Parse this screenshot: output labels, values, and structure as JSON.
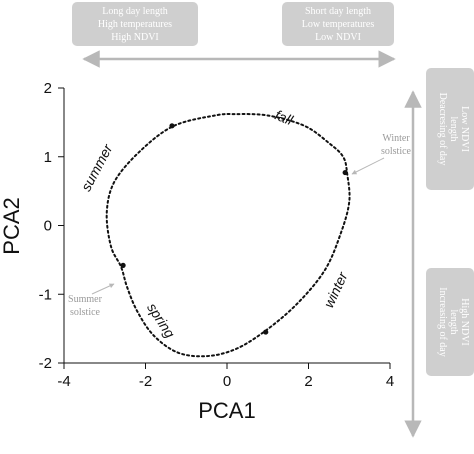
{
  "colors": {
    "box_fill": "#cfcfcf",
    "arrow": "#b8b8b8",
    "annotation_text": "#9a9a9a",
    "curve": "#111111"
  },
  "top_boxes": {
    "left": [
      "Long day length",
      "High temperatures",
      "High NDVI"
    ],
    "right": [
      "Short day length",
      "Low temperatures",
      "Low NDVI"
    ]
  },
  "side_boxes": {
    "upper": [
      "Deacresing of day",
      "length",
      "Low NDVI"
    ],
    "lower": [
      "Increasing of day",
      "length",
      "High NDVI"
    ]
  },
  "chart_data": {
    "type": "line",
    "xlabel": "PCA1",
    "ylabel": "PCA2",
    "xlim": [
      -4,
      4
    ],
    "ylim": [
      -2,
      2
    ],
    "xticks": [
      -4,
      -2,
      0,
      2,
      4
    ],
    "yticks": [
      -2,
      -1,
      0,
      1,
      2
    ],
    "xtick_labels": [
      "-4",
      "-2",
      "0",
      "2",
      "4"
    ],
    "ytick_labels": [
      "-2",
      "-1",
      "0",
      "1",
      "2"
    ],
    "line_style": "dotted",
    "closed": true,
    "curve": {
      "x": [
        -0.3,
        -1.3,
        -2.1,
        -2.75,
        -2.95,
        -2.85,
        -2.6,
        -2.45,
        -2.2,
        -1.8,
        -1.2,
        -0.5,
        0.2,
        0.9,
        1.7,
        2.4,
        2.8,
        3.0,
        2.95,
        2.85,
        2.5,
        1.9,
        1.0,
        0.2
      ],
      "y": [
        1.6,
        1.45,
        1.1,
        0.65,
        0.2,
        -0.3,
        -0.6,
        -0.9,
        -1.25,
        -1.6,
        -1.85,
        -1.9,
        -1.8,
        -1.55,
        -1.15,
        -0.65,
        -0.1,
        0.35,
        0.75,
        1.0,
        1.2,
        1.45,
        1.6,
        1.62
      ]
    },
    "points": {
      "x": [
        -1.35,
        2.9,
        0.95,
        -2.55
      ],
      "y": [
        1.45,
        0.77,
        -1.55,
        -0.58
      ]
    },
    "annotations": {
      "seasons": [
        "summer",
        "fall",
        "winter",
        "spring"
      ],
      "winter_solstice": [
        "Winter",
        "solstice"
      ],
      "summer_solstice": [
        "Summer",
        "solstice"
      ]
    }
  }
}
